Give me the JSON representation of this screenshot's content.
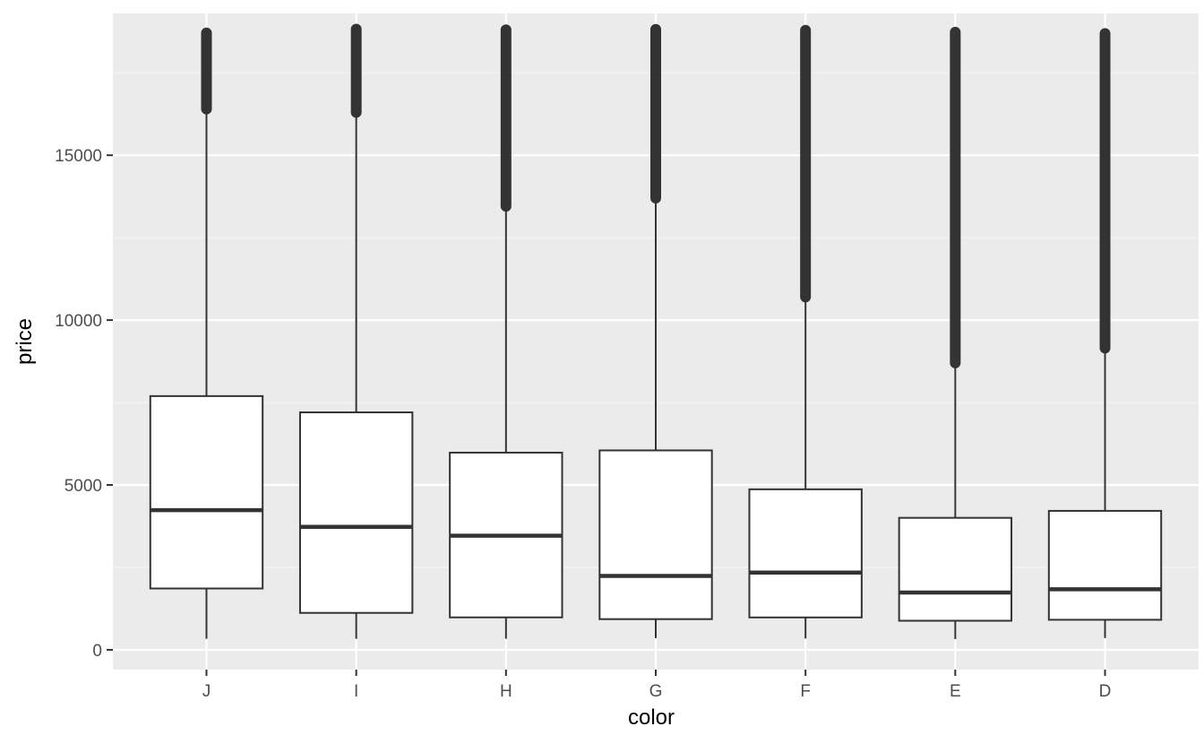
{
  "chart_data": {
    "type": "boxplot",
    "title": "",
    "xlabel": "color",
    "ylabel": "price",
    "categories": [
      "J",
      "I",
      "H",
      "G",
      "F",
      "E",
      "D"
    ],
    "ylim": [
      -600,
      19300
    ],
    "y_ticks": [
      0,
      5000,
      10000,
      15000
    ],
    "grid": true,
    "colors": {
      "panel_bg": "#ebebeb",
      "grid_major": "#ffffff",
      "grid_minor": "#f5f5f5",
      "box_fill": "#ffffff",
      "box_stroke": "#333333",
      "outlier": "#333333"
    },
    "boxes": [
      {
        "category": "J",
        "whisker_low": 335,
        "q1": 1860,
        "median": 4234,
        "q3": 7695,
        "whisker_high": 16400,
        "outliers_range": [
          16400,
          18710
        ]
      },
      {
        "category": "I",
        "whisker_low": 334,
        "q1": 1120,
        "median": 3730,
        "q3": 7202,
        "whisker_high": 16300,
        "outliers_range": [
          16300,
          18823
        ]
      },
      {
        "category": "H",
        "whisker_low": 337,
        "q1": 984,
        "median": 3460,
        "q3": 5980,
        "whisker_high": 13450,
        "outliers_range": [
          13450,
          18803
        ]
      },
      {
        "category": "G",
        "whisker_low": 354,
        "q1": 931,
        "median": 2242,
        "q3": 6048,
        "whisker_high": 13700,
        "outliers_range": [
          13700,
          18818
        ]
      },
      {
        "category": "F",
        "whisker_low": 342,
        "q1": 982,
        "median": 2343,
        "q3": 4868,
        "whisker_high": 10700,
        "outliers_range": [
          10700,
          18791
        ]
      },
      {
        "category": "E",
        "whisker_low": 326,
        "q1": 882,
        "median": 1739,
        "q3": 4003,
        "whisker_high": 8700,
        "outliers_range": [
          8700,
          18731
        ]
      },
      {
        "category": "D",
        "whisker_low": 357,
        "q1": 911,
        "median": 1838,
        "q3": 4214,
        "whisker_high": 9150,
        "outliers_range": [
          9150,
          18693
        ]
      }
    ]
  }
}
